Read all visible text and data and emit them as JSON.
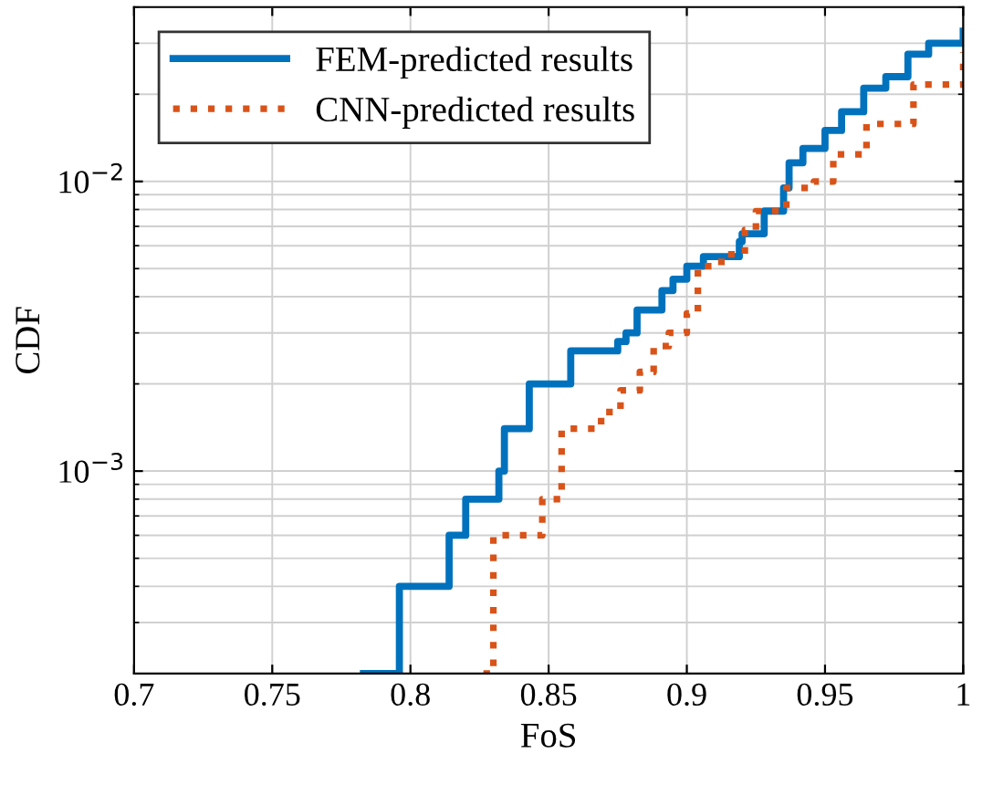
{
  "chart_data": {
    "type": "step",
    "xlabel": "FoS",
    "ylabel": "CDF",
    "log": "y",
    "xlim": [
      0.7,
      1
    ],
    "xticks": [
      0.7,
      0.75,
      0.8,
      0.85,
      0.9,
      0.95,
      1
    ],
    "ylim": [
      0.0002,
      0.04
    ],
    "yticks": [
      {
        "value": 0.001,
        "label": "10$^{−3}$"
      },
      {
        "value": 0.01,
        "label": "10$^{−2}$"
      }
    ],
    "grid": true,
    "legend": "top left",
    "series": [
      {
        "name": "FEM-predicted results",
        "color": "#0072bd",
        "line_style": "solid",
        "x": [
          0.783,
          0.796,
          0.814,
          0.82,
          0.832,
          0.834,
          0.843,
          0.858,
          0.875,
          0.878,
          0.882,
          0.891,
          0.895,
          0.9,
          0.906,
          0.919,
          0.92,
          0.928,
          0.935,
          0.937,
          0.942,
          0.95,
          0.956,
          0.964,
          0.972,
          0.98,
          0.9875,
          1.0
        ],
        "values": [
          0.0002,
          0.0004,
          0.0006,
          0.0008,
          0.001,
          0.0014,
          0.002,
          0.0026,
          0.0028,
          0.003,
          0.0036,
          0.0042,
          0.0046,
          0.0051,
          0.0055,
          0.0062,
          0.0066,
          0.0079,
          0.0095,
          0.0116,
          0.013,
          0.015,
          0.0174,
          0.021,
          0.023,
          0.0275,
          0.03,
          0.033
        ]
      },
      {
        "name": "CNN-predicted results",
        "color": "#d95319",
        "line_style": "dotted",
        "x": [
          0.8264,
          0.83,
          0.8477,
          0.8547,
          0.869,
          0.876,
          0.883,
          0.888,
          0.8935,
          0.9,
          0.904,
          0.9125,
          0.921,
          0.925,
          0.936,
          0.946,
          0.953,
          0.965,
          0.982,
          1.0
        ],
        "values": [
          0.0002,
          0.0006,
          0.0008,
          0.0014,
          0.0016,
          0.0019,
          0.0022,
          0.0027,
          0.003,
          0.0035,
          0.0051,
          0.0056,
          0.0068,
          0.0079,
          0.0095,
          0.01,
          0.0124,
          0.0158,
          0.0216,
          0.028
        ]
      }
    ]
  }
}
